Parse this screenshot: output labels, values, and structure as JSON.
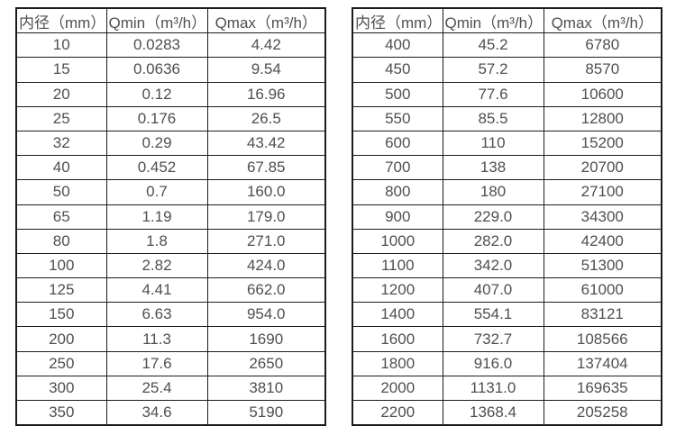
{
  "colors": {
    "border": "#1c1c1c",
    "text": "#4f4f4f",
    "background": "#ffffff"
  },
  "tables": [
    {
      "name": "flow-rate-table-small-diameters",
      "headers": {
        "diameter": "内径（mm）",
        "qmin": "Qmin（m³/h）",
        "qmax": "Qmax（m³/h）"
      },
      "rows": [
        [
          "10",
          "0.0283",
          "4.42"
        ],
        [
          "15",
          "0.0636",
          "9.54"
        ],
        [
          "20",
          "0.12",
          "16.96"
        ],
        [
          "25",
          "0.176",
          "26.5"
        ],
        [
          "32",
          "0.29",
          "43.42"
        ],
        [
          "40",
          "0.452",
          "67.85"
        ],
        [
          "50",
          "0.7",
          "160.0"
        ],
        [
          "65",
          "1.19",
          "179.0"
        ],
        [
          "80",
          "1.8",
          "271.0"
        ],
        [
          "100",
          "2.82",
          "424.0"
        ],
        [
          "125",
          "4.41",
          "662.0"
        ],
        [
          "150",
          "6.63",
          "954.0"
        ],
        [
          "200",
          "11.3",
          "1690"
        ],
        [
          "250",
          "17.6",
          "2650"
        ],
        [
          "300",
          "25.4",
          "3810"
        ],
        [
          "350",
          "34.6",
          "5190"
        ]
      ]
    },
    {
      "name": "flow-rate-table-large-diameters",
      "headers": {
        "diameter": "内径（mm）",
        "qmin": "Qmin（m³/h）",
        "qmax": "Qmax（m³/h）"
      },
      "rows": [
        [
          "400",
          "45.2",
          "6780"
        ],
        [
          "450",
          "57.2",
          "8570"
        ],
        [
          "500",
          "77.6",
          "10600"
        ],
        [
          "550",
          "85.5",
          "12800"
        ],
        [
          "600",
          "110",
          "15200"
        ],
        [
          "700",
          "138",
          "20700"
        ],
        [
          "800",
          "180",
          "27100"
        ],
        [
          "900",
          "229.0",
          "34300"
        ],
        [
          "1000",
          "282.0",
          "42400"
        ],
        [
          "1100",
          "342.0",
          "51300"
        ],
        [
          "1200",
          "407.0",
          "61000"
        ],
        [
          "1400",
          "554.1",
          "83121"
        ],
        [
          "1600",
          "732.7",
          "108566"
        ],
        [
          "1800",
          "916.0",
          "137404"
        ],
        [
          "2000",
          "1131.0",
          "169635"
        ],
        [
          "2200",
          "1368.4",
          "205258"
        ]
      ]
    }
  ]
}
